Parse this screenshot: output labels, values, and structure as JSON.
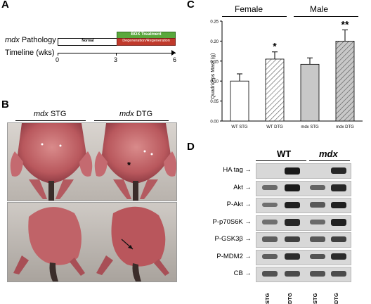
{
  "panelA": {
    "letter": "A",
    "pathology_prefix": "mdx",
    "pathology_suffix": " Pathology",
    "timeline_label": "Timeline (wks)",
    "normal_label": "Normal",
    "box_label": "BOX Treatment",
    "degen_label": "Degeneration/Regeneration",
    "ticks": [
      "0",
      "3",
      "6"
    ]
  },
  "panelB": {
    "letter": "B",
    "left_title_prefix": "mdx",
    "left_title_suffix": " STG",
    "right_title_prefix": "mdx",
    "right_title_suffix": " DTG",
    "star": "*"
  },
  "panelC": {
    "letter": "C",
    "female_label": "Female",
    "male_label": "Male",
    "star_single": "*",
    "star_double": "**"
  },
  "panelD": {
    "letter": "D",
    "wt_label": "WT",
    "mdx_label": "mdx",
    "rows": [
      {
        "label": "HA tag →"
      },
      {
        "label": "Akt →"
      },
      {
        "label": "P-Akt →"
      },
      {
        "label": "P-p70S6K →"
      },
      {
        "label": "P-GSK3β →"
      },
      {
        "label": "P-MDM2 →"
      },
      {
        "label": "CB →"
      }
    ],
    "lanes": [
      "STG",
      "DTG",
      "STG",
      "DTG"
    ]
  },
  "chart_data": {
    "type": "bar",
    "categories": [
      "WT STG",
      "WT DTG",
      "mdx STG",
      "mdx DTG"
    ],
    "values": [
      0.1,
      0.155,
      0.142,
      0.2
    ],
    "errors": [
      0.018,
      0.018,
      0.016,
      0.028
    ],
    "ylabel": "Quadriceps Mass (g)",
    "ylim": [
      0,
      0.25
    ],
    "yticks": [
      "0.00",
      "0.05",
      "0.10",
      "0.15",
      "0.20",
      "0.25"
    ],
    "bar_styles": [
      "white",
      "white-hatched",
      "gray",
      "gray-hatched"
    ]
  }
}
